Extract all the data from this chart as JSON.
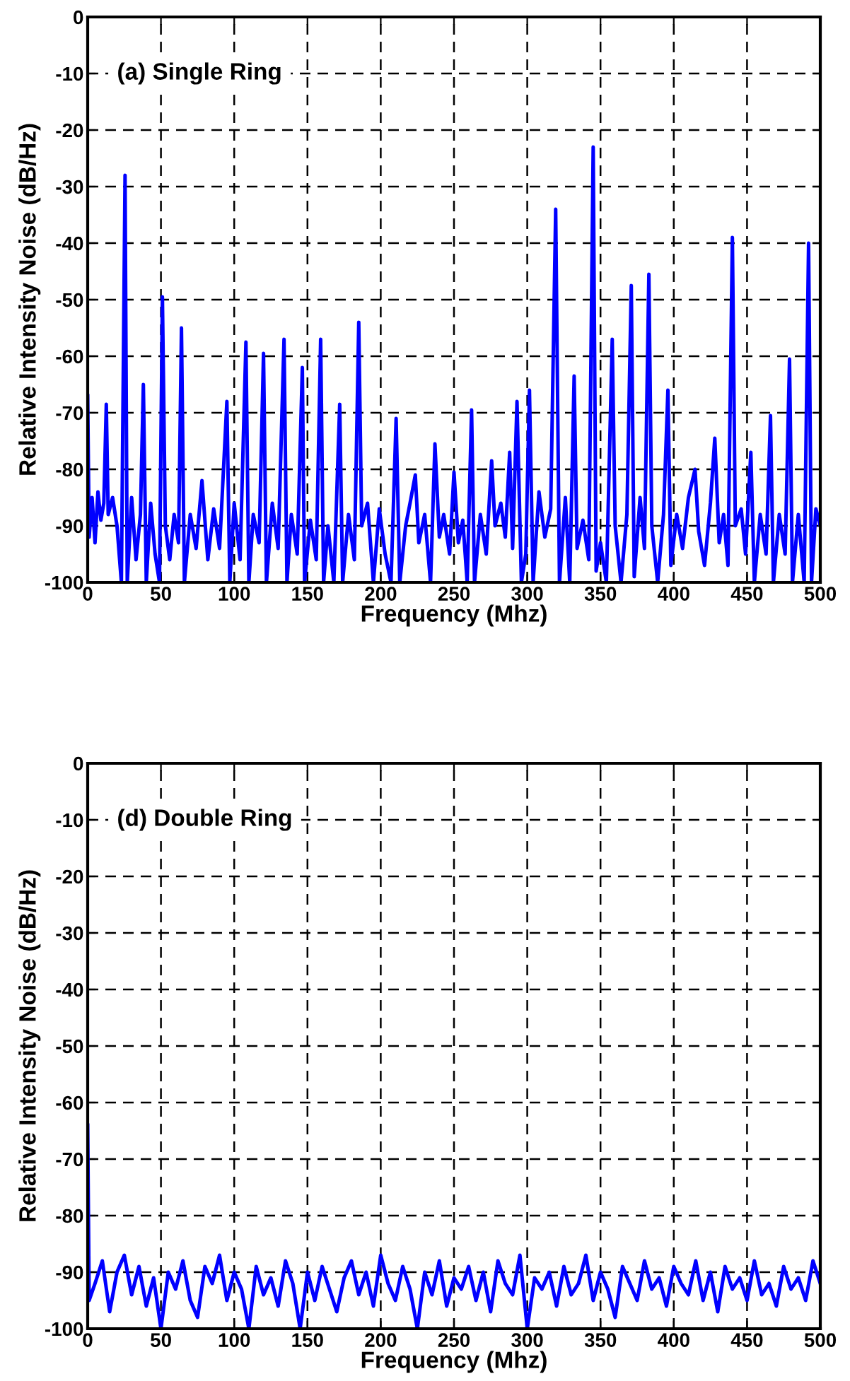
{
  "chart_data": [
    {
      "type": "line",
      "title": "(a) Single Ring",
      "xlabel": "Frequency (Mhz)",
      "ylabel": "Relative Intensity Noise (dB/Hz)",
      "xlim": [
        0,
        500
      ],
      "ylim": [
        -100,
        0
      ],
      "xticks": [
        0,
        50,
        100,
        150,
        200,
        250,
        300,
        350,
        400,
        450,
        500
      ],
      "yticks": [
        -100,
        -90,
        -80,
        -70,
        -60,
        -50,
        -40,
        -30,
        -20,
        -10,
        0
      ],
      "grid": true,
      "line_style": "solid",
      "marker": "none",
      "series": [
        {
          "color": "#0000ff",
          "x": [
            0,
            1,
            3,
            5,
            7,
            9,
            11,
            12.7,
            14,
            17,
            20,
            23,
            25.5,
            27,
            30,
            33,
            36,
            38,
            40,
            43,
            46,
            49,
            51,
            53,
            56,
            59,
            62,
            64,
            66,
            70,
            74,
            78,
            82,
            86,
            90,
            95,
            97,
            100,
            104,
            108,
            110,
            113,
            117,
            120,
            122,
            126,
            130,
            134,
            136,
            139,
            143,
            146.5,
            148,
            152,
            156,
            159,
            161,
            164,
            168,
            172,
            174,
            178,
            182,
            185,
            187,
            191,
            195,
            199,
            203,
            207,
            210.5,
            213,
            217,
            220,
            223.6,
            226,
            230,
            234,
            237,
            240,
            243,
            247,
            250,
            253,
            256,
            259,
            262,
            264,
            268,
            272,
            275.7,
            278,
            282,
            285,
            288,
            290,
            293,
            296,
            299,
            301.5,
            304,
            308,
            312,
            316,
            319.4,
            322,
            326,
            329,
            332,
            334,
            338,
            342,
            345,
            347,
            350,
            354,
            358,
            360,
            364,
            368,
            371,
            373,
            377,
            380,
            383,
            385,
            389,
            393,
            396,
            398,
            402,
            406,
            410,
            414.5,
            417,
            421,
            425,
            428,
            431,
            434,
            437,
            440,
            442,
            446,
            449,
            452.6,
            455,
            459,
            463,
            466,
            468,
            472,
            476,
            479,
            481,
            485,
            489,
            492,
            494,
            497,
            500
          ],
          "values": [
            -67,
            -92,
            -85,
            -93,
            -84,
            -89,
            -86,
            -68.5,
            -88,
            -85,
            -90,
            -100,
            -28,
            -100,
            -85,
            -96,
            -88,
            -65,
            -100,
            -86,
            -95,
            -100,
            -49.5,
            -90,
            -96,
            -88,
            -93,
            -55,
            -100,
            -88,
            -94,
            -82,
            -96,
            -87,
            -94,
            -68,
            -100,
            -86,
            -96,
            -57.5,
            -100,
            -88,
            -93,
            -59.5,
            -100,
            -86,
            -94,
            -57,
            -100,
            -88,
            -95,
            -62,
            -100,
            -89,
            -96,
            -57,
            -100,
            -90,
            -100,
            -68.5,
            -100,
            -88,
            -96,
            -54,
            -90,
            -86,
            -100,
            -87,
            -95,
            -100,
            -71,
            -100,
            -90,
            -86,
            -81,
            -93,
            -88,
            -100,
            -75.5,
            -92,
            -88,
            -95,
            -80.5,
            -93,
            -89,
            -100,
            -69.5,
            -100,
            -88,
            -95,
            -78.5,
            -90,
            -86,
            -92,
            -77,
            -94,
            -68,
            -100,
            -95,
            -66,
            -100,
            -84,
            -92,
            -87,
            -34,
            -100,
            -85,
            -100,
            -63.5,
            -94,
            -89,
            -96,
            -23,
            -98,
            -93,
            -100,
            -57,
            -90,
            -100,
            -88,
            -47.5,
            -99,
            -85,
            -94,
            -45.5,
            -90,
            -100,
            -88,
            -66,
            -97,
            -88,
            -94,
            -85,
            -80,
            -91,
            -97,
            -86,
            -74.5,
            -93,
            -88,
            -97,
            -39,
            -90,
            -87,
            -95,
            -77,
            -100,
            -88,
            -95,
            -70.5,
            -100,
            -88,
            -95,
            -60.5,
            -100,
            -88,
            -100,
            -40,
            -100,
            -87,
            -90
          ]
        }
      ]
    },
    {
      "type": "line",
      "title": "(d) Double Ring",
      "xlabel": "Frequency (Mhz)",
      "ylabel": "Relative Intensity Noise (dB/Hz)",
      "xlim": [
        0,
        500
      ],
      "ylim": [
        -100,
        0
      ],
      "xticks": [
        0,
        50,
        100,
        150,
        200,
        250,
        300,
        350,
        400,
        450,
        500
      ],
      "yticks": [
        -100,
        -90,
        -80,
        -70,
        -60,
        -50,
        -40,
        -30,
        -20,
        -10,
        0
      ],
      "grid": true,
      "line_style": "solid",
      "marker": "none",
      "series": [
        {
          "color": "#0000ff",
          "x": [
            0,
            1,
            5,
            10,
            15,
            20,
            25,
            30,
            35,
            40,
            45,
            50,
            55,
            60,
            65,
            70,
            75,
            80,
            85,
            90,
            95,
            100,
            105,
            110,
            115,
            120,
            125,
            130,
            135,
            140,
            145,
            150,
            155,
            160,
            165,
            170,
            175,
            180,
            185,
            190,
            195,
            200,
            205,
            210,
            215,
            220,
            225,
            230,
            235,
            240,
            245,
            250,
            255,
            260,
            265,
            270,
            275,
            280,
            285,
            290,
            295,
            300,
            305,
            310,
            315,
            320,
            325,
            330,
            335,
            340,
            345,
            350,
            355,
            360,
            365,
            370,
            375,
            380,
            385,
            390,
            395,
            400,
            405,
            410,
            415,
            420,
            425,
            430,
            435,
            440,
            445,
            450,
            455,
            460,
            465,
            470,
            475,
            480,
            485,
            490,
            495,
            500
          ],
          "values": [
            -64,
            -95,
            -92,
            -88,
            -97,
            -90,
            -87,
            -94,
            -89,
            -96,
            -91,
            -100,
            -90,
            -93,
            -88,
            -95,
            -98,
            -89,
            -92,
            -87,
            -95,
            -90,
            -93,
            -100,
            -89,
            -94,
            -91,
            -96,
            -88,
            -92,
            -100,
            -90,
            -95,
            -89,
            -93,
            -97,
            -91,
            -88,
            -94,
            -90,
            -96,
            -87,
            -92,
            -95,
            -89,
            -93,
            -100,
            -90,
            -94,
            -88,
            -96,
            -91,
            -93,
            -89,
            -95,
            -90,
            -97,
            -88,
            -92,
            -94,
            -87,
            -100,
            -91,
            -93,
            -90,
            -96,
            -89,
            -94,
            -92,
            -87,
            -95,
            -90,
            -93,
            -98,
            -89,
            -92,
            -95,
            -88,
            -93,
            -91,
            -96,
            -89,
            -92,
            -94,
            -88,
            -95,
            -90,
            -97,
            -89,
            -93,
            -91,
            -95,
            -88,
            -94,
            -92,
            -96,
            -89,
            -93,
            -91,
            -95,
            -88,
            -92
          ]
        }
      ]
    }
  ]
}
